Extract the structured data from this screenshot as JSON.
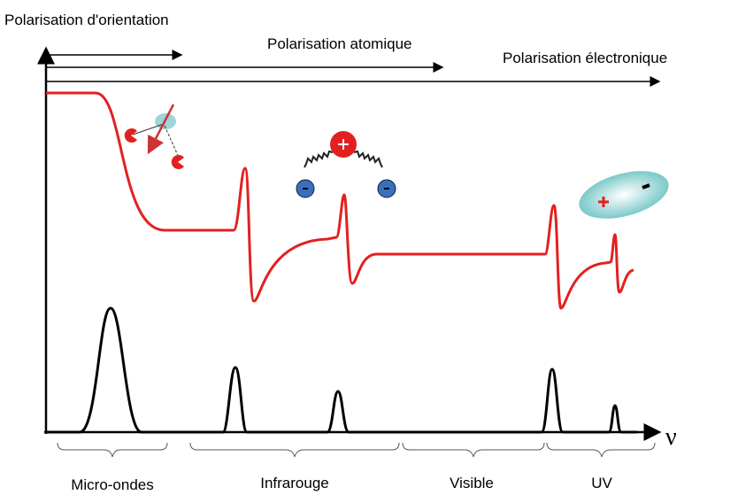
{
  "labels": {
    "orientation": "Polarisation d'orientation",
    "atomic": "Polarisation atomique",
    "electronic": "Polarisation électronique",
    "axis": "ν"
  },
  "regions": [
    "Micro-ondes",
    "Infrarouge",
    "Visible",
    "UV"
  ]
}
